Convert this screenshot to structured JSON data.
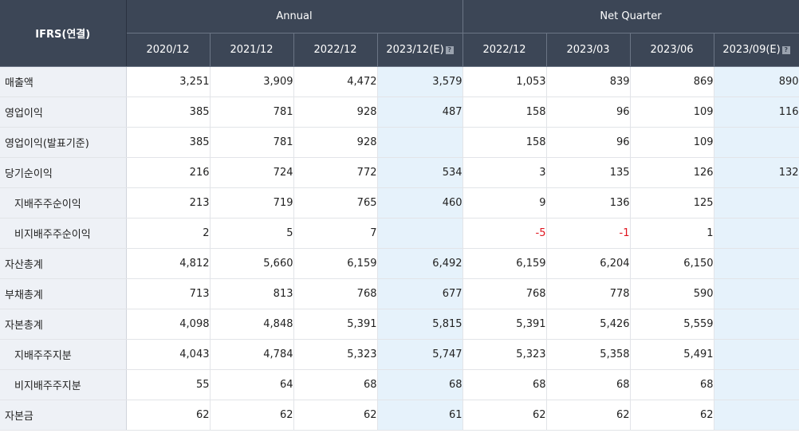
{
  "header": {
    "title": "IFRS(연결)",
    "annual_label": "Annual",
    "net_quarter_label": "Net Quarter",
    "annual_periods": [
      "2020/12",
      "2021/12",
      "2022/12",
      "2023/12(E)"
    ],
    "quarter_periods": [
      "2022/12",
      "2023/03",
      "2023/06",
      "2023/09(E)"
    ],
    "estimate_icon": "?"
  },
  "colors": {
    "header_bg": "#3c4656",
    "label_bg": "#eef1f6",
    "estimate_bg": "#e6f2fb",
    "negative": "#e0141e"
  },
  "rows": [
    {
      "label": "매출액",
      "sub": false,
      "values": [
        "3,251",
        "3,909",
        "4,472",
        "3,579",
        "1,053",
        "839",
        "869",
        "890"
      ]
    },
    {
      "label": "영업이익",
      "sub": false,
      "values": [
        "385",
        "781",
        "928",
        "487",
        "158",
        "96",
        "109",
        "116"
      ]
    },
    {
      "label": "영업이익(발표기준)",
      "sub": false,
      "values": [
        "385",
        "781",
        "928",
        "",
        "158",
        "96",
        "109",
        ""
      ]
    },
    {
      "label": "당기순이익",
      "sub": false,
      "values": [
        "216",
        "724",
        "772",
        "534",
        "3",
        "135",
        "126",
        "132"
      ]
    },
    {
      "label": "지배주주순이익",
      "sub": true,
      "values": [
        "213",
        "719",
        "765",
        "460",
        "9",
        "136",
        "125",
        ""
      ]
    },
    {
      "label": "비지배주주순이익",
      "sub": true,
      "values": [
        "2",
        "5",
        "7",
        "",
        "-5",
        "-1",
        "1",
        ""
      ]
    },
    {
      "label": "자산총계",
      "sub": false,
      "values": [
        "4,812",
        "5,660",
        "6,159",
        "6,492",
        "6,159",
        "6,204",
        "6,150",
        ""
      ]
    },
    {
      "label": "부채총계",
      "sub": false,
      "values": [
        "713",
        "813",
        "768",
        "677",
        "768",
        "778",
        "590",
        ""
      ]
    },
    {
      "label": "자본총계",
      "sub": false,
      "values": [
        "4,098",
        "4,848",
        "5,391",
        "5,815",
        "5,391",
        "5,426",
        "5,559",
        ""
      ]
    },
    {
      "label": "지배주주지분",
      "sub": true,
      "values": [
        "4,043",
        "4,784",
        "5,323",
        "5,747",
        "5,323",
        "5,358",
        "5,491",
        ""
      ]
    },
    {
      "label": "비지배주주지분",
      "sub": true,
      "values": [
        "55",
        "64",
        "68",
        "68",
        "68",
        "68",
        "68",
        ""
      ]
    },
    {
      "label": "자본금",
      "sub": false,
      "values": [
        "62",
        "62",
        "62",
        "61",
        "62",
        "62",
        "62",
        ""
      ]
    }
  ]
}
